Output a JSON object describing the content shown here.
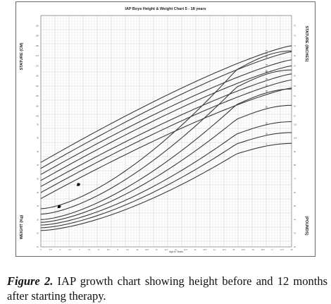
{
  "figure": {
    "caption_lead": "Figure 2.",
    "caption_text": " IAP growth chart showing height before and 12 months after starting therapy."
  },
  "chart_data": {
    "type": "line",
    "title": "IAP Boys Height & Weight Chart 5 - 18 years",
    "xlabel": "Age in Years",
    "x_range": [
      5,
      18
    ],
    "height_panel": {
      "left_axis_label": "STATURE (CM)",
      "right_axis_label": "STATURE (INCHES)",
      "ylim": [
        80,
        195
      ],
      "percentiles": [
        {
          "name": "97",
          "values": [
            122,
            180
          ]
        },
        {
          "name": "90",
          "values": [
            119,
            177
          ]
        },
        {
          "name": "75",
          "values": [
            116,
            173
          ]
        },
        {
          "name": "50",
          "values": [
            113,
            170
          ]
        },
        {
          "name": "25",
          "values": [
            110,
            166
          ]
        },
        {
          "name": "10",
          "values": [
            107,
            163
          ]
        },
        {
          "name": "3",
          "values": [
            104,
            159
          ]
        }
      ]
    },
    "weight_panel": {
      "left_axis_label": "WEIGHT (Kg)",
      "right_axis_label": "(POUNDS)",
      "ylim": [
        10,
        95
      ],
      "percentiles": [
        {
          "name": "97",
          "values": [
            24,
            82
          ]
        },
        {
          "name": "90",
          "values": [
            22,
            75
          ]
        },
        {
          "name": "75",
          "values": [
            20,
            68
          ]
        },
        {
          "name": "50",
          "values": [
            19,
            62
          ]
        },
        {
          "name": "25",
          "values": [
            18,
            56
          ]
        },
        {
          "name": "10",
          "values": [
            17,
            52
          ]
        },
        {
          "name": "3",
          "values": [
            16,
            48
          ]
        }
      ]
    },
    "patient_points": [
      {
        "label": "before therapy",
        "x": 5.95,
        "y": 100
      },
      {
        "label": "12 months after therapy",
        "x": 6.95,
        "y": 111
      }
    ],
    "grid": true
  }
}
